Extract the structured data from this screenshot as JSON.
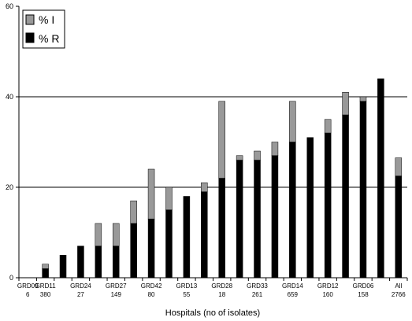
{
  "chart_data": {
    "type": "bar",
    "stacked": true,
    "xlabel": "Hospitals (no of isolates)",
    "ylabel": "",
    "ylim": [
      0,
      60
    ],
    "yticks": [
      0,
      20,
      40,
      60
    ],
    "gridlines_y": [
      20,
      40
    ],
    "legend_position": "top-left",
    "categories": [
      {
        "label": "GRD09",
        "n": "6"
      },
      {
        "label": "GRD11",
        "n": "380"
      },
      {
        "label": "",
        "n": ""
      },
      {
        "label": "GRD24",
        "n": "27"
      },
      {
        "label": "",
        "n": ""
      },
      {
        "label": "GRD27",
        "n": "149"
      },
      {
        "label": "",
        "n": ""
      },
      {
        "label": "GRD42",
        "n": "80"
      },
      {
        "label": "",
        "n": ""
      },
      {
        "label": "GRD13",
        "n": "55"
      },
      {
        "label": "",
        "n": ""
      },
      {
        "label": "GRD28",
        "n": "18"
      },
      {
        "label": "",
        "n": ""
      },
      {
        "label": "GRD33",
        "n": "261"
      },
      {
        "label": "",
        "n": ""
      },
      {
        "label": "GRD14",
        "n": "659"
      },
      {
        "label": "",
        "n": ""
      },
      {
        "label": "GRD12",
        "n": "160"
      },
      {
        "label": "",
        "n": ""
      },
      {
        "label": "GRD06",
        "n": "158"
      },
      {
        "label": "",
        "n": ""
      },
      {
        "label": "All",
        "n": "2766"
      }
    ],
    "series": [
      {
        "name": "% R",
        "color": "#000000",
        "values": [
          0,
          2,
          5,
          7,
          7,
          7,
          12,
          13,
          15,
          18,
          19,
          22,
          26,
          26,
          27,
          30,
          31,
          32,
          36,
          39,
          44,
          22.5
        ]
      },
      {
        "name": "% I",
        "color": "#999999",
        "values": [
          0,
          1,
          0,
          0,
          5,
          5,
          5,
          11,
          5,
          0,
          2,
          17,
          1,
          2,
          3,
          9,
          0,
          3,
          5,
          1,
          0,
          4
        ]
      }
    ],
    "legend": [
      {
        "label": "% I",
        "color": "#999999"
      },
      {
        "label": "% R",
        "color": "#000000"
      }
    ]
  }
}
